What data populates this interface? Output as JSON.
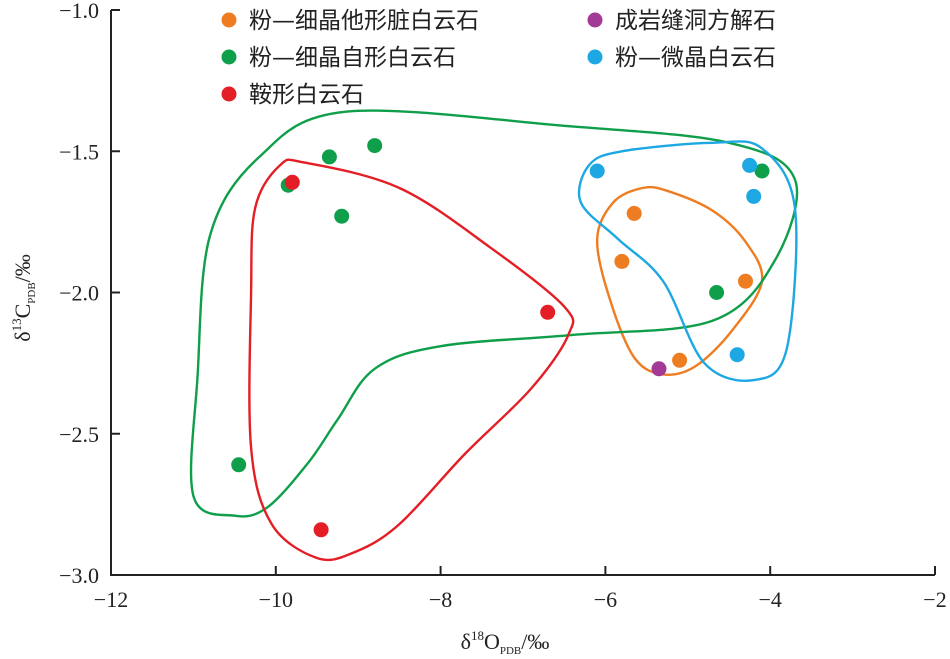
{
  "chart_data": {
    "type": "scatter",
    "xlabel": {
      "prefix": "δ",
      "sup": "18",
      "main": "O",
      "sub": "PDB",
      "unit": "/‰"
    },
    "ylabel": {
      "prefix": "δ",
      "sup": "13",
      "main": "C",
      "sub": "PDB",
      "unit": "/‰"
    },
    "xlim": [
      -12,
      -2
    ],
    "ylim": [
      -3.0,
      -1.0
    ],
    "x_ticks": [
      -12,
      -10,
      -8,
      -6,
      -4,
      -2
    ],
    "y_ticks": [
      -3.0,
      -2.5,
      -2.0,
      -1.5,
      -1.0
    ],
    "x_tick_labels": [
      "−12",
      "−10",
      "−8",
      "−6",
      "−4",
      "−2"
    ],
    "y_tick_labels": [
      "−3.0",
      "−2.5",
      "−2.0",
      "−1.5",
      "−1.0"
    ],
    "legend_position": "top",
    "series": [
      {
        "name": "粉—细晶他形脏白云石",
        "color": "#ee7d22",
        "points": [
          [
            -5.65,
            -1.72
          ],
          [
            -5.8,
            -1.89
          ],
          [
            -4.3,
            -1.96
          ],
          [
            -5.1,
            -2.24
          ]
        ],
        "outline": [
          [
            -5.25,
            -1.64
          ],
          [
            -4.7,
            -1.71
          ],
          [
            -4.3,
            -1.82
          ],
          [
            -4.1,
            -1.96
          ],
          [
            -4.45,
            -2.13
          ],
          [
            -4.9,
            -2.26
          ],
          [
            -5.3,
            -2.29
          ],
          [
            -5.65,
            -2.23
          ],
          [
            -5.95,
            -2.02
          ],
          [
            -6.1,
            -1.81
          ],
          [
            -5.9,
            -1.68
          ],
          [
            -5.55,
            -1.63
          ]
        ]
      },
      {
        "name": "粉—细晶自形白云石",
        "color": "#0f9f4a",
        "points": [
          [
            -9.85,
            -1.62
          ],
          [
            -9.35,
            -1.52
          ],
          [
            -8.8,
            -1.48
          ],
          [
            -9.2,
            -1.73
          ],
          [
            -4.65,
            -2.0
          ],
          [
            -4.1,
            -1.57
          ],
          [
            -10.45,
            -2.61
          ]
        ],
        "outline": [
          [
            -9.15,
            -1.36
          ],
          [
            -6.5,
            -1.41
          ],
          [
            -4.5,
            -1.47
          ],
          [
            -3.7,
            -1.6
          ],
          [
            -3.95,
            -1.89
          ],
          [
            -4.7,
            -2.1
          ],
          [
            -6.4,
            -2.15
          ],
          [
            -8.0,
            -2.19
          ],
          [
            -8.8,
            -2.27
          ],
          [
            -9.25,
            -2.45
          ],
          [
            -9.6,
            -2.6
          ],
          [
            -10.1,
            -2.76
          ],
          [
            -10.5,
            -2.79
          ],
          [
            -11.0,
            -2.72
          ],
          [
            -10.95,
            -2.3
          ],
          [
            -10.8,
            -1.8
          ],
          [
            -10.2,
            -1.52
          ]
        ]
      },
      {
        "name": "鞍形白云石",
        "color": "#e31e25",
        "points": [
          [
            -9.8,
            -1.61
          ],
          [
            -6.7,
            -2.07
          ],
          [
            -9.45,
            -2.84
          ]
        ],
        "outline": [
          [
            -9.65,
            -1.54
          ],
          [
            -8.5,
            -1.63
          ],
          [
            -7.4,
            -1.84
          ],
          [
            -6.5,
            -2.05
          ],
          [
            -6.45,
            -2.15
          ],
          [
            -6.9,
            -2.34
          ],
          [
            -7.7,
            -2.57
          ],
          [
            -8.5,
            -2.82
          ],
          [
            -9.05,
            -2.92
          ],
          [
            -9.5,
            -2.94
          ],
          [
            -10.05,
            -2.82
          ],
          [
            -10.3,
            -2.55
          ],
          [
            -10.3,
            -2.0
          ],
          [
            -10.25,
            -1.7
          ],
          [
            -9.95,
            -1.55
          ]
        ]
      },
      {
        "name": "成岩缝洞方解石",
        "color": "#a33a96",
        "points": [
          [
            -5.35,
            -2.27
          ]
        ],
        "outline": []
      },
      {
        "name": "粉—微晶白云石",
        "color": "#1ea8e3",
        "points": [
          [
            -6.1,
            -1.57
          ],
          [
            -4.25,
            -1.55
          ],
          [
            -4.2,
            -1.66
          ],
          [
            -4.4,
            -2.22
          ]
        ],
        "outline": [
          [
            -5.8,
            -1.5
          ],
          [
            -4.7,
            -1.47
          ],
          [
            -4.1,
            -1.49
          ],
          [
            -3.7,
            -1.7
          ],
          [
            -3.8,
            -2.2
          ],
          [
            -4.2,
            -2.31
          ],
          [
            -4.8,
            -2.25
          ],
          [
            -5.3,
            -1.96
          ],
          [
            -5.85,
            -1.81
          ],
          [
            -6.3,
            -1.68
          ],
          [
            -6.2,
            -1.55
          ]
        ]
      }
    ],
    "legend": [
      {
        "label": "粉—细晶他形脏白云石",
        "color": "#ee7d22"
      },
      {
        "label": "成岩缝洞方解石",
        "color": "#a33a96"
      },
      {
        "label": "粉—细晶自形白云石",
        "color": "#0f9f4a"
      },
      {
        "label": "粉—微晶白云石",
        "color": "#1ea8e3"
      },
      {
        "label": "鞍形白云石",
        "color": "#e31e25"
      }
    ]
  }
}
